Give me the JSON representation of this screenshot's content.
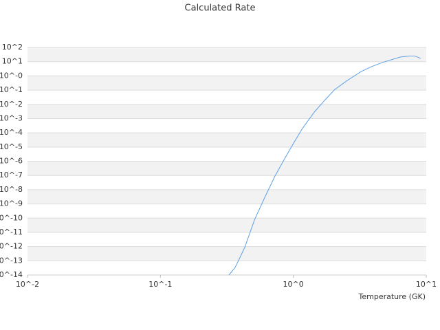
{
  "chart_data": {
    "type": "line",
    "title": "Calculated Rate",
    "xlabel": "Temperature (GK)",
    "xscale": "log",
    "yscale": "log",
    "grid": true,
    "band_color": "#f2f2f2",
    "xlim": [
      0.01,
      10
    ],
    "ylim": [
      1e-14,
      100
    ],
    "xticks": [
      {
        "value": 0.01,
        "label": "10^-2"
      },
      {
        "value": 0.1,
        "label": "10^-1"
      },
      {
        "value": 1,
        "label": "10^0"
      },
      {
        "value": 10,
        "label": "10^1"
      }
    ],
    "yticks": [
      {
        "value": 100,
        "label": "10^2"
      },
      {
        "value": 10,
        "label": "10^1"
      },
      {
        "value": 1,
        "label": "10^-0"
      },
      {
        "value": 0.1,
        "label": "10^-1"
      },
      {
        "value": 0.01,
        "label": "10^-2"
      },
      {
        "value": 0.001,
        "label": "10^-3"
      },
      {
        "value": 0.0001,
        "label": "10^-4"
      },
      {
        "value": 1e-05,
        "label": "10^-5"
      },
      {
        "value": 1e-06,
        "label": "10^-6"
      },
      {
        "value": 1e-07,
        "label": "10^-7"
      },
      {
        "value": 1e-08,
        "label": "10^-8"
      },
      {
        "value": 1e-09,
        "label": "10^-9"
      },
      {
        "value": 1e-10,
        "label": "10^-10"
      },
      {
        "value": 1e-11,
        "label": "10^-11"
      },
      {
        "value": 1e-12,
        "label": "10^-12"
      },
      {
        "value": 1e-13,
        "label": "10^-13"
      },
      {
        "value": 1e-14,
        "label": "10^-14"
      }
    ],
    "x": [
      0.328,
      0.365,
      0.431,
      0.51,
      0.61,
      0.728,
      0.86,
      1.02,
      1.17,
      1.44,
      1.72,
      2.05,
      2.55,
      3.23,
      3.86,
      4.67,
      6.37,
      7.44,
      8.18,
      9.1
    ],
    "series": [
      {
        "color": "#5aa0e6",
        "values": [
          1e-14,
          3.4e-14,
          8.7e-13,
          7.4e-11,
          2.9e-09,
          9.1e-08,
          1.5e-06,
          2.4e-05,
          0.0002,
          0.0029,
          0.019,
          0.11,
          0.48,
          2.0,
          4.4,
          8.7,
          21,
          25,
          25,
          17
        ]
      }
    ]
  }
}
